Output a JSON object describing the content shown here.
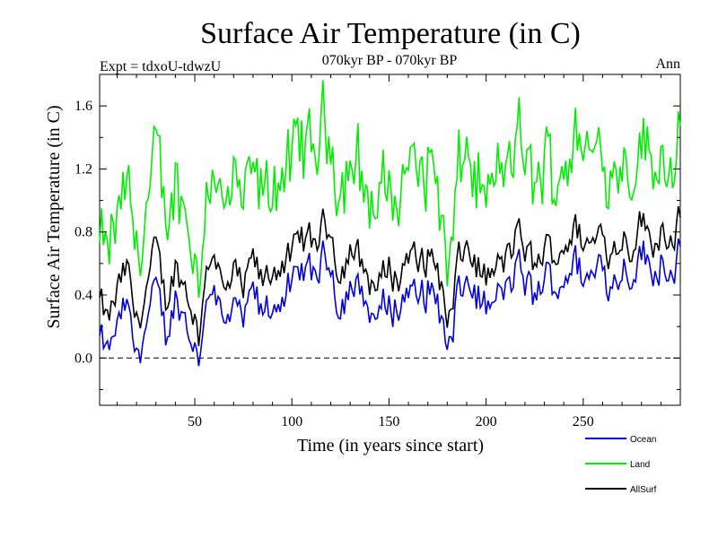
{
  "chart_data": {
    "type": "line",
    "title": "Surface Air Temperature (in C)",
    "subtitle": "070kyr BP - 070kyr BP",
    "left_note": "Expt = tdxoU-tdwzU",
    "right_note": "Ann",
    "xlabel": "Time (in years since start)",
    "ylabel": "Surface Air Temperature (in C)",
    "xlim": [
      1,
      300
    ],
    "ylim": [
      -0.3,
      1.8
    ],
    "xticks": [
      50,
      100,
      150,
      200,
      250
    ],
    "xtick_labels": [
      "50",
      "100",
      "150",
      "200",
      "250"
    ],
    "yticks": [
      0.0,
      0.4,
      0.8,
      1.2,
      1.6
    ],
    "ytick_labels": [
      "0.0",
      "0.4",
      "0.8",
      "1.2",
      "1.6"
    ],
    "zero_line": "dashed",
    "grid": false,
    "legend_position": "bottom-right",
    "colors": {
      "Ocean": "#0000dd",
      "Land": "#00ee00",
      "AllSurf": "#000000"
    },
    "series_keypoints": {
      "note": "Land = AllSurf + land_offset; Ocean = AllSurf - ocean_offset",
      "x": [
        1,
        5,
        10,
        15,
        20,
        25,
        30,
        35,
        40,
        45,
        50,
        52,
        55,
        60,
        65,
        70,
        75,
        80,
        85,
        90,
        95,
        100,
        105,
        110,
        115,
        120,
        125,
        130,
        135,
        140,
        145,
        150,
        155,
        160,
        165,
        170,
        175,
        178,
        180,
        183,
        185,
        190,
        195,
        200,
        205,
        210,
        215,
        220,
        225,
        230,
        235,
        240,
        245,
        250,
        255,
        260,
        265,
        270,
        275,
        280,
        285,
        290,
        295,
        300
      ],
      "AllSurf": [
        0.35,
        0.2,
        0.4,
        0.55,
        0.2,
        0.45,
        0.65,
        0.35,
        0.6,
        0.45,
        0.3,
        0.05,
        0.55,
        0.75,
        0.35,
        0.5,
        0.4,
        0.6,
        0.45,
        0.55,
        0.65,
        0.6,
        0.75,
        0.7,
        0.8,
        0.85,
        0.55,
        0.7,
        0.6,
        0.5,
        0.45,
        0.6,
        0.5,
        0.7,
        0.55,
        0.65,
        0.6,
        0.4,
        0.1,
        0.35,
        0.55,
        0.7,
        0.6,
        0.5,
        0.55,
        0.6,
        0.75,
        0.7,
        0.55,
        0.7,
        0.65,
        0.75,
        0.8,
        0.75,
        0.7,
        0.85,
        0.65,
        0.8,
        0.75,
        0.9,
        0.7,
        0.85,
        0.8,
        0.9
      ],
      "land_offset": [
        0.35,
        0.4,
        0.45,
        0.5,
        0.45,
        0.5,
        0.55,
        0.5,
        0.55,
        0.5,
        0.4,
        0.35,
        0.5,
        0.55,
        0.5,
        0.55,
        0.5,
        0.55,
        0.5,
        0.55,
        0.6,
        0.55,
        0.6,
        0.55,
        0.65,
        0.6,
        0.55,
        0.6,
        0.55,
        0.5,
        0.5,
        0.55,
        0.5,
        0.6,
        0.55,
        0.6,
        0.55,
        0.4,
        0.25,
        0.4,
        0.5,
        0.6,
        0.55,
        0.5,
        0.55,
        0.55,
        0.6,
        0.55,
        0.5,
        0.55,
        0.5,
        0.55,
        0.55,
        0.6,
        0.55,
        0.55,
        0.5,
        0.55,
        0.5,
        0.5,
        0.5,
        0.5,
        0.5,
        0.5
      ],
      "ocean_offset": [
        0.25,
        0.2,
        0.22,
        0.25,
        0.2,
        0.22,
        0.25,
        0.2,
        0.22,
        0.2,
        0.2,
        0.15,
        0.2,
        0.22,
        0.2,
        0.22,
        0.2,
        0.22,
        0.2,
        0.22,
        0.22,
        0.2,
        0.22,
        0.2,
        0.22,
        0.22,
        0.2,
        0.22,
        0.2,
        0.2,
        0.2,
        0.22,
        0.2,
        0.22,
        0.2,
        0.22,
        0.2,
        0.2,
        0.15,
        0.2,
        0.2,
        0.22,
        0.2,
        0.2,
        0.2,
        0.2,
        0.22,
        0.2,
        0.2,
        0.2,
        0.2,
        0.2,
        0.2,
        0.2,
        0.2,
        0.2,
        0.2,
        0.2,
        0.2,
        0.2,
        0.2,
        0.2,
        0.2,
        0.2
      ]
    },
    "series": [
      {
        "name": "Ocean"
      },
      {
        "name": "Land"
      },
      {
        "name": "AllSurf"
      }
    ]
  }
}
